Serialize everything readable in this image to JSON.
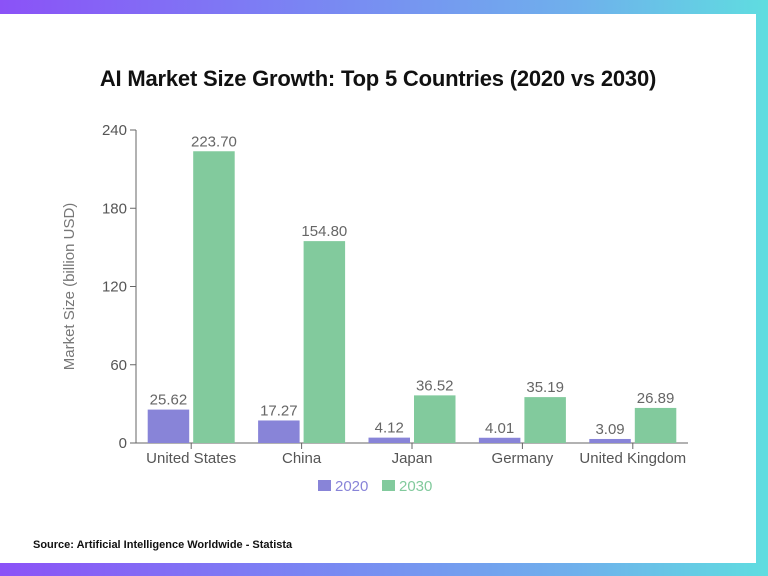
{
  "title": "AI Market Size Growth: Top 5 Countries (2020 vs 2030)",
  "source": "Source: Artificial Intelligence Worldwide - Statista",
  "colors": {
    "s2020": "#8884d8",
    "s2030": "#82ca9d",
    "axis": "#666666"
  },
  "chart_data": {
    "type": "bar",
    "title": "AI Market Size Growth: Top 5 Countries (2020 vs 2030)",
    "categories": [
      "United States",
      "China",
      "Japan",
      "Germany",
      "United Kingdom"
    ],
    "series": [
      {
        "name": "2020",
        "values": [
          25.62,
          17.27,
          4.12,
          4.01,
          3.09
        ],
        "labels": [
          "25.62",
          "17.27",
          "4.12",
          "4.01",
          "3.09"
        ]
      },
      {
        "name": "2030",
        "values": [
          223.7,
          154.8,
          36.52,
          35.19,
          26.89
        ],
        "labels": [
          "223.70",
          "154.80",
          "36.52",
          "35.19",
          "26.89"
        ]
      }
    ],
    "xlabel": "",
    "ylabel": "Market Size (billion USD)",
    "ylim": [
      0,
      240
    ],
    "yticks": [
      "0",
      "60",
      "120",
      "180",
      "240"
    ],
    "grid": false,
    "legend": "bottom"
  }
}
